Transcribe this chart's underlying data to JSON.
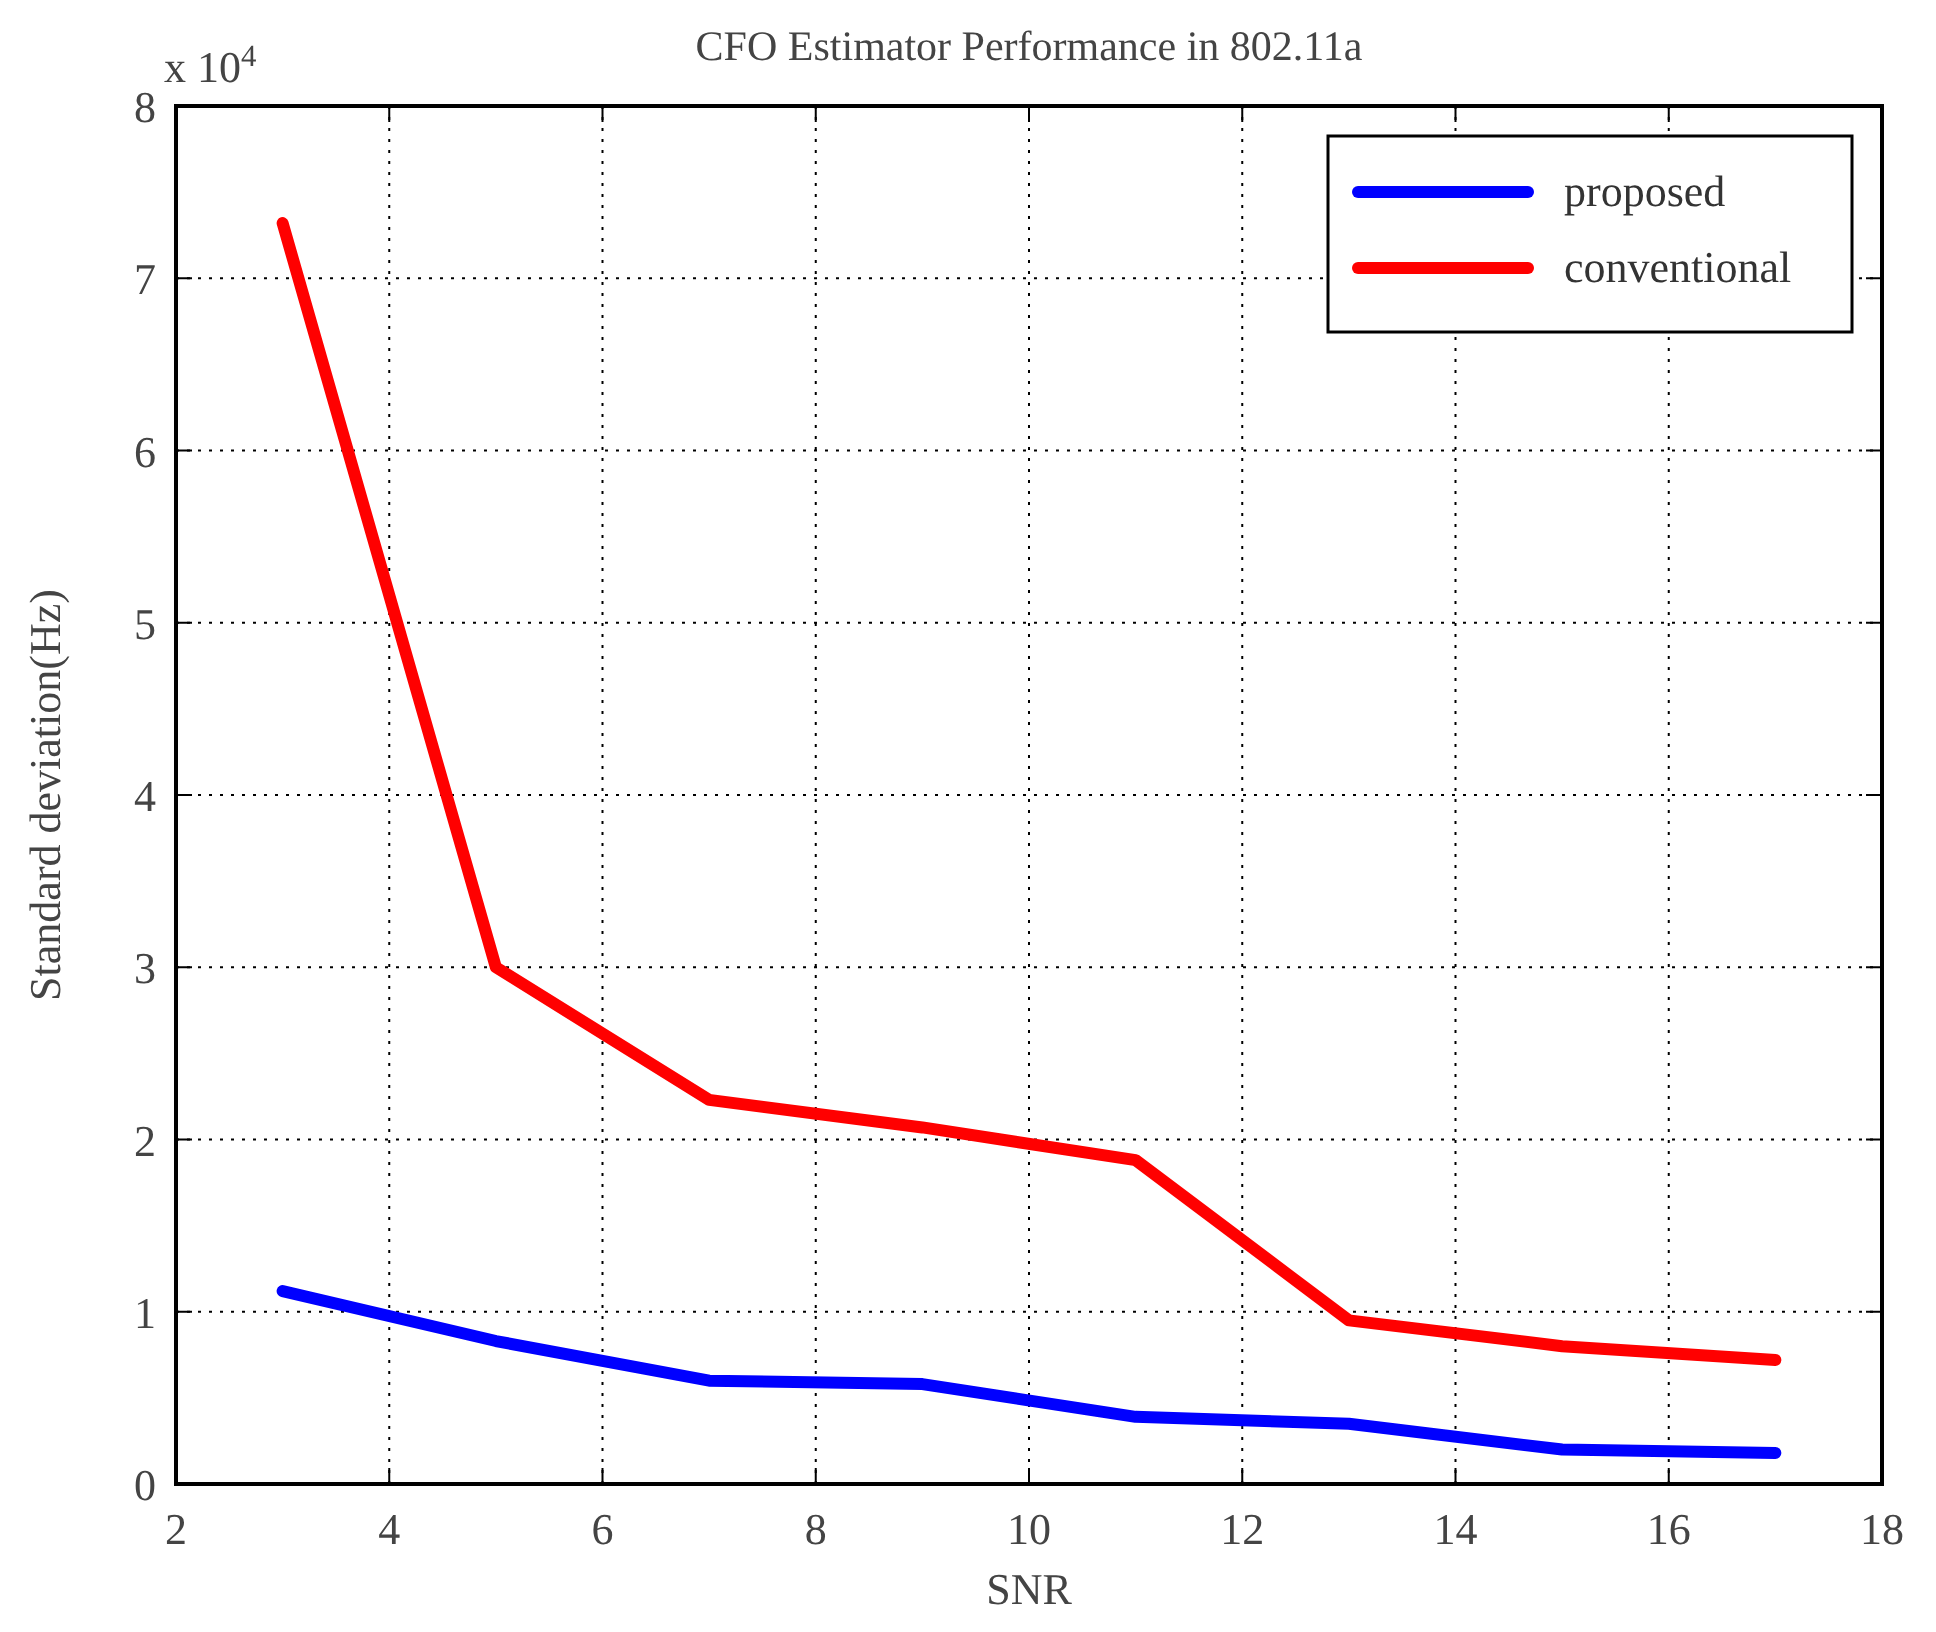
{
  "chart_data": {
    "type": "line",
    "title": "CFO Estimator Performance in 802.11a",
    "xlabel": "SNR",
    "ylabel": "Standard deviation(Hz)",
    "annotations": [
      "x 10$^{4}$"
    ],
    "x": [
      3,
      5,
      7,
      9,
      11,
      13,
      15,
      17
    ],
    "series": [
      {
        "name": "proposed",
        "color": "#0000ff",
        "values": [
          1.12,
          0.83,
          0.6,
          0.58,
          0.39,
          0.35,
          0.2,
          0.18
        ]
      },
      {
        "name": "conventional",
        "color": "#ff0000",
        "values": [
          7.32,
          3.0,
          2.23,
          2.07,
          1.88,
          0.95,
          0.8,
          0.72
        ]
      }
    ],
    "xlim": [
      2,
      18
    ],
    "xticks": [
      2,
      4,
      6,
      8,
      10,
      12,
      14,
      16,
      18
    ],
    "ylim": [
      0,
      8
    ],
    "yticks": [
      0,
      1,
      2,
      3,
      4,
      5,
      6,
      7,
      8
    ],
    "grid": true,
    "legend": "top right",
    "line_style": "solid",
    "marker": "none"
  }
}
